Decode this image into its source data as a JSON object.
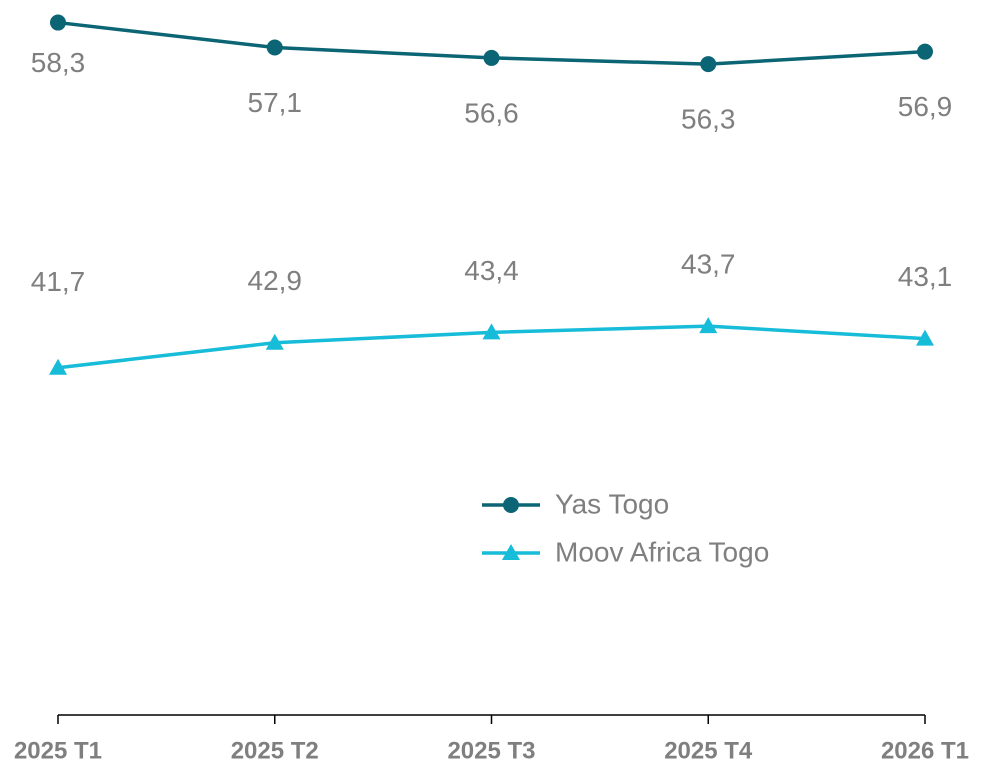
{
  "chart_data": {
    "type": "line",
    "categories": [
      "2025 T1",
      "2025 T2",
      "2025 T3",
      "2025 T4",
      "2026 T1"
    ],
    "series": [
      {
        "name": "Yas Togo",
        "color": "#0b6574",
        "marker": "circle",
        "values": [
          58.3,
          57.1,
          56.6,
          56.3,
          56.9
        ],
        "value_labels": [
          "58,3",
          "57,1",
          "56,6",
          "56,3",
          "56,9"
        ]
      },
      {
        "name": "Moov Africa Togo",
        "color": "#17bcd9",
        "marker": "triangle",
        "values": [
          41.7,
          42.9,
          43.4,
          43.7,
          43.1
        ],
        "value_labels": [
          "41,7",
          "42,9",
          "43,4",
          "43,7",
          "43,1"
        ]
      }
    ],
    "ylim": [
      25,
      59
    ]
  }
}
